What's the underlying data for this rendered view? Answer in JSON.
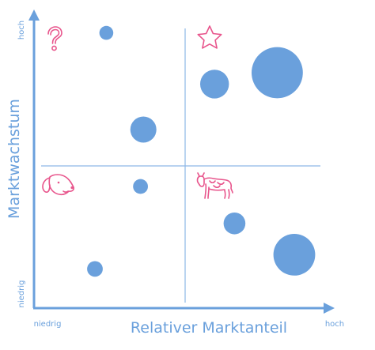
{
  "axes": {
    "x_title": "Relativer Marktanteil",
    "y_title": "Marktwachstum",
    "x_low": "niedrig",
    "x_high": "hoch",
    "y_low": "niedrig",
    "y_high": "hoch",
    "color": "#6aa0dc"
  },
  "quadrant_icons": [
    "question-mark-icon",
    "star-icon",
    "dog-icon",
    "cow-icon"
  ],
  "icon_color": "#e8558c",
  "bubble_color": "#6aa0dc",
  "bubbles": [
    {
      "share": 0.24,
      "growth": 0.94,
      "size": 0.16
    },
    {
      "share": 0.37,
      "growth": 0.6,
      "size": 0.3
    },
    {
      "share": 0.36,
      "growth": 0.4,
      "size": 0.17
    },
    {
      "share": 0.2,
      "growth": 0.11,
      "size": 0.18
    },
    {
      "share": 0.62,
      "growth": 0.76,
      "size": 0.33
    },
    {
      "share": 0.84,
      "growth": 0.8,
      "size": 0.59
    },
    {
      "share": 0.69,
      "growth": 0.27,
      "size": 0.25
    },
    {
      "share": 0.9,
      "growth": 0.16,
      "size": 0.48
    }
  ]
}
